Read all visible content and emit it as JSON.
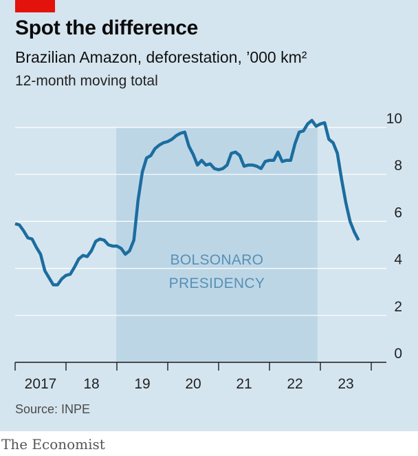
{
  "header": {
    "title": "Spot the difference",
    "subtitle": "Brazilian Amazon, deforestation, ’000 km²",
    "note": "12-month moving total"
  },
  "footer": {
    "source": "Source: INPE",
    "brand": "The Economist"
  },
  "colors": {
    "background": "#d5e5ef",
    "shade": "#bdd6e6",
    "line": "#1c6d9f",
    "accent_red": "#e3120b",
    "grid": "#ffffff",
    "shade_label": "#5890b4"
  },
  "chart_data": {
    "type": "line",
    "title": "Spot the difference",
    "subtitle": "Brazilian Amazon, deforestation, ’000 km²",
    "ylim": [
      0,
      10
    ],
    "y_ticks": [
      0,
      2,
      4,
      6,
      8,
      10
    ],
    "y_tick_labels": [
      "0",
      "2",
      "4",
      "6",
      "8",
      "10"
    ],
    "y_axis_position": "right",
    "grid": true,
    "x_range": [
      "2017-01",
      "2024-01"
    ],
    "x_tick_labels": [
      "2017",
      "18",
      "19",
      "20",
      "21",
      "22",
      "23"
    ],
    "shaded_region": {
      "label_lines": [
        "BOLSONARO",
        "PRESIDENCY"
      ],
      "start": "2019-01",
      "end": "2022-12"
    },
    "series": [
      {
        "values": [
          [
            "2017-01",
            5.9
          ],
          [
            "2017-02",
            5.85
          ],
          [
            "2017-03",
            5.6
          ],
          [
            "2017-04",
            5.3
          ],
          [
            "2017-05",
            5.25
          ],
          [
            "2017-06",
            4.9
          ],
          [
            "2017-07",
            4.6
          ],
          [
            "2017-08",
            3.9
          ],
          [
            "2017-09",
            3.6
          ],
          [
            "2017-10",
            3.3
          ],
          [
            "2017-11",
            3.3
          ],
          [
            "2017-12",
            3.55
          ],
          [
            "2018-01",
            3.7
          ],
          [
            "2018-02",
            3.75
          ],
          [
            "2018-03",
            4.05
          ],
          [
            "2018-04",
            4.4
          ],
          [
            "2018-05",
            4.55
          ],
          [
            "2018-06",
            4.5
          ],
          [
            "2018-07",
            4.75
          ],
          [
            "2018-08",
            5.15
          ],
          [
            "2018-09",
            5.25
          ],
          [
            "2018-10",
            5.2
          ],
          [
            "2018-11",
            5.0
          ],
          [
            "2018-12",
            4.95
          ],
          [
            "2019-01",
            4.95
          ],
          [
            "2019-02",
            4.85
          ],
          [
            "2019-03",
            4.6
          ],
          [
            "2019-04",
            4.75
          ],
          [
            "2019-05",
            5.2
          ],
          [
            "2019-06",
            6.9
          ],
          [
            "2019-07",
            8.1
          ],
          [
            "2019-08",
            8.7
          ],
          [
            "2019-09",
            8.8
          ],
          [
            "2019-10",
            9.1
          ],
          [
            "2019-11",
            9.25
          ],
          [
            "2019-12",
            9.35
          ],
          [
            "2020-01",
            9.4
          ],
          [
            "2020-02",
            9.5
          ],
          [
            "2020-03",
            9.65
          ],
          [
            "2020-04",
            9.75
          ],
          [
            "2020-05",
            9.8
          ],
          [
            "2020-06",
            9.2
          ],
          [
            "2020-07",
            8.85
          ],
          [
            "2020-08",
            8.4
          ],
          [
            "2020-09",
            8.6
          ],
          [
            "2020-10",
            8.4
          ],
          [
            "2020-11",
            8.45
          ],
          [
            "2020-12",
            8.25
          ],
          [
            "2021-01",
            8.2
          ],
          [
            "2021-02",
            8.25
          ],
          [
            "2021-03",
            8.4
          ],
          [
            "2021-04",
            8.9
          ],
          [
            "2021-05",
            8.95
          ],
          [
            "2021-06",
            8.8
          ],
          [
            "2021-07",
            8.35
          ],
          [
            "2021-08",
            8.4
          ],
          [
            "2021-09",
            8.4
          ],
          [
            "2021-10",
            8.35
          ],
          [
            "2021-11",
            8.25
          ],
          [
            "2021-12",
            8.55
          ],
          [
            "2022-01",
            8.6
          ],
          [
            "2022-02",
            8.6
          ],
          [
            "2022-03",
            8.95
          ],
          [
            "2022-04",
            8.55
          ],
          [
            "2022-05",
            8.6
          ],
          [
            "2022-06",
            8.6
          ],
          [
            "2022-07",
            9.3
          ],
          [
            "2022-08",
            9.8
          ],
          [
            "2022-09",
            9.85
          ],
          [
            "2022-10",
            10.15
          ],
          [
            "2022-11",
            10.3
          ],
          [
            "2022-12",
            10.05
          ],
          [
            "2023-01",
            10.15
          ],
          [
            "2023-02",
            10.2
          ],
          [
            "2023-03",
            9.5
          ],
          [
            "2023-04",
            9.35
          ],
          [
            "2023-05",
            8.9
          ],
          [
            "2023-06",
            7.8
          ],
          [
            "2023-07",
            6.8
          ],
          [
            "2023-08",
            6.0
          ],
          [
            "2023-09",
            5.55
          ],
          [
            "2023-10",
            5.2
          ]
        ]
      }
    ]
  }
}
